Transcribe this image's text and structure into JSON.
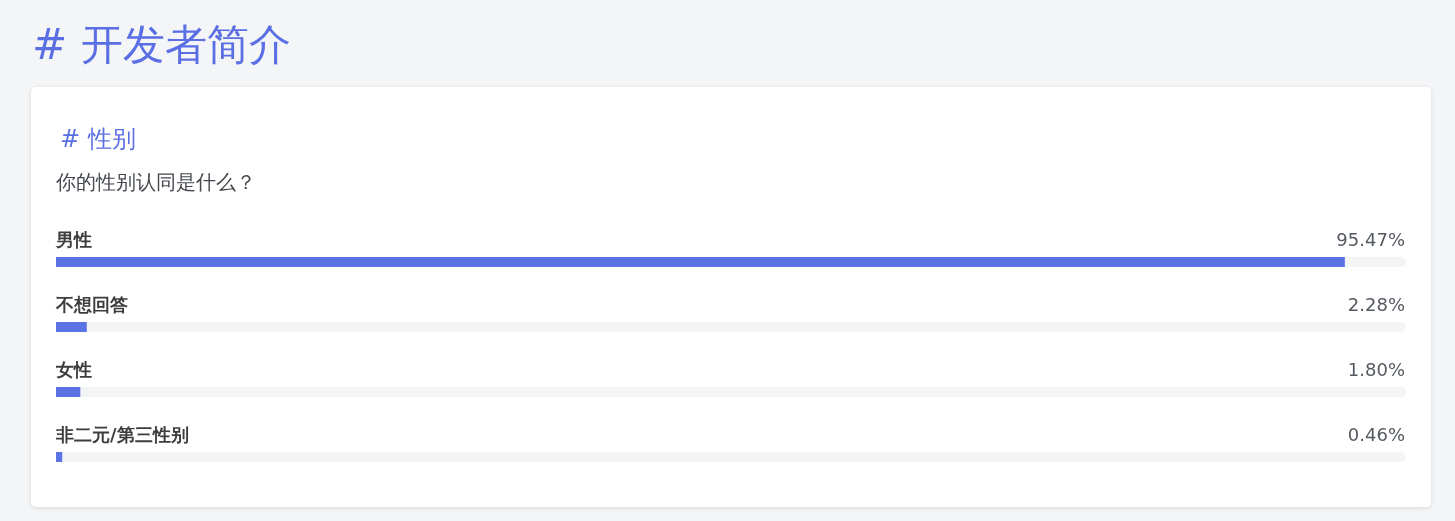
{
  "chart_data": {
    "type": "bar",
    "orientation": "horizontal",
    "title": "# 开发者简介",
    "subtitle": "# 性别",
    "annotations": [
      "你的性别认同是什么？"
    ],
    "categories": [
      "男性",
      "不想回答",
      "女性",
      "非二元/第三性别"
    ],
    "values": [
      95.47,
      2.28,
      1.8,
      0.46
    ],
    "value_labels": [
      "95.47%",
      "2.28%",
      "1.80%",
      "0.46%"
    ],
    "color": "#5a72e4",
    "xlim": [
      0,
      100
    ],
    "tick_labels": "y"
  }
}
